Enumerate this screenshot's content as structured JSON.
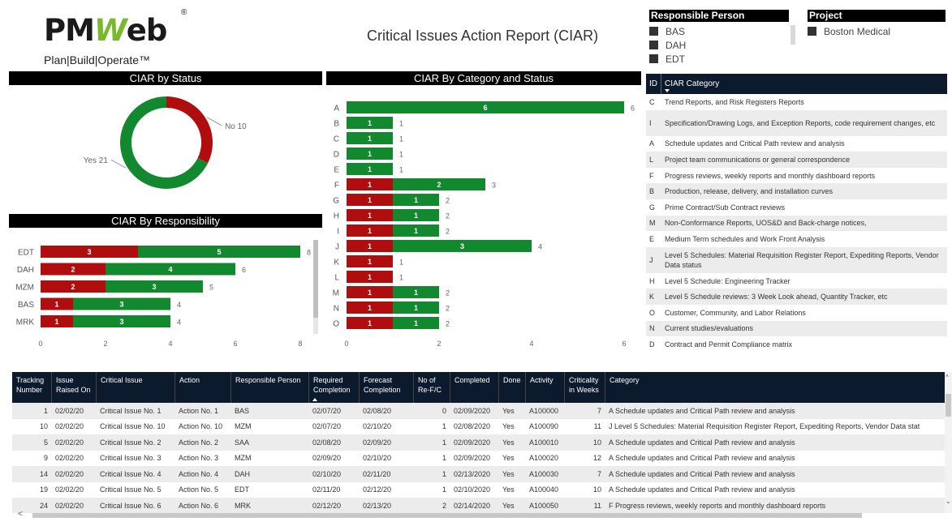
{
  "logo": {
    "main_pm": "PM",
    "main_w": "W",
    "main_eb": "eb",
    "registered": "®",
    "tagline": "Plan|Build|Operate™"
  },
  "report_title": "Critical Issues Action Report (CIAR)",
  "slicers": {
    "responsible": {
      "title": "Responsible Person",
      "items": [
        "BAS",
        "DAH",
        "EDT"
      ]
    },
    "project": {
      "title": "Project",
      "items": [
        "Boston Medical"
      ]
    }
  },
  "panels": {
    "status": "CIAR by Status",
    "category_status": "CIAR By Category and Status",
    "responsibility": "CIAR By Responsibility"
  },
  "colors": {
    "no": "#b00e0e",
    "yes": "#13892f",
    "header": "#0c1a2e"
  },
  "chart_data": [
    {
      "type": "pie",
      "title": "CIAR by Status",
      "slices": [
        {
          "label": "No",
          "value": 10,
          "text": "No 10",
          "color": "#b00e0e"
        },
        {
          "label": "Yes",
          "value": 21,
          "text": "Yes 21",
          "color": "#13892f"
        }
      ]
    },
    {
      "type": "bar",
      "orientation": "horizontal",
      "stacked": true,
      "title": "CIAR By Category and Status",
      "categories": [
        "A",
        "B",
        "C",
        "D",
        "E",
        "F",
        "G",
        "H",
        "I",
        "J",
        "K",
        "L",
        "M",
        "N",
        "O"
      ],
      "series": [
        {
          "color": "#b00e0e",
          "values": [
            0,
            0,
            0,
            0,
            0,
            1,
            1,
            1,
            1,
            1,
            1,
            1,
            1,
            1,
            1
          ]
        },
        {
          "color": "#13892f",
          "values": [
            6,
            1,
            1,
            1,
            1,
            2,
            1,
            1,
            1,
            3,
            0,
            0,
            1,
            1,
            1
          ]
        }
      ],
      "totals": [
        6,
        1,
        1,
        1,
        1,
        3,
        2,
        2,
        2,
        4,
        1,
        1,
        2,
        2,
        2
      ],
      "xticks": [
        0,
        2,
        4,
        6
      ],
      "xlim": [
        0,
        6
      ]
    },
    {
      "type": "bar",
      "orientation": "horizontal",
      "stacked": true,
      "title": "CIAR By Responsibility",
      "categories": [
        "EDT",
        "DAH",
        "MZM",
        "BAS",
        "MRK"
      ],
      "series": [
        {
          "color": "#b00e0e",
          "values": [
            3,
            2,
            2,
            1,
            1
          ]
        },
        {
          "color": "#13892f",
          "values": [
            5,
            4,
            3,
            3,
            3
          ]
        }
      ],
      "totals": [
        8,
        6,
        5,
        4,
        4
      ],
      "xticks": [
        0,
        2,
        4,
        6,
        8
      ],
      "xlim": [
        0,
        8
      ]
    }
  ],
  "category_table": {
    "headers": {
      "id": "ID",
      "category": "CIAR Category"
    },
    "rows": [
      {
        "id": "C",
        "text": "Trend Reports, and Risk Registers Reports"
      },
      {
        "id": "I",
        "text": "Specification/Drawing Logs, and Exception Reports, code requirement changes, etc"
      },
      {
        "id": "A",
        "text": "Schedule updates and Critical Path review and analysis"
      },
      {
        "id": "L",
        "text": "Project team communications or general correspondence"
      },
      {
        "id": "F",
        "text": "Progress reviews, weekly reports and monthly dashboard reports"
      },
      {
        "id": "B",
        "text": "Production, release, delivery, and installation curves"
      },
      {
        "id": "G",
        "text": "Prime Contract/Sub Contract reviews"
      },
      {
        "id": "M",
        "text": "Non-Conformance Reports, UOS&D and Back-charge notices,"
      },
      {
        "id": "E",
        "text": "Medium Term schedules and Work Front Analysis"
      },
      {
        "id": "J",
        "text": "Level 5 Schedules: Material Requisition Register Report, Expediting Reports, Vendor Data status"
      },
      {
        "id": "H",
        "text": "Level 5 Schedule: Engineering Tracker"
      },
      {
        "id": "K",
        "text": "Level 5 Schedule reviews: 3 Week Look ahead, Quantity Tracker, etc"
      },
      {
        "id": "O",
        "text": "Customer, Community, and Labor Relations"
      },
      {
        "id": "N",
        "text": "Current studies/evaluations"
      },
      {
        "id": "D",
        "text": "Contract and Permit Compliance matrix"
      }
    ]
  },
  "main_table": {
    "headers": [
      "Tracking Number",
      "Issue Raised On",
      "Critical Issue",
      "Action",
      "Responsible Person",
      "Required Completion",
      "Forecast Completion",
      "No of Re-F/C",
      "Completed",
      "Done",
      "Activity",
      "Criticality in Weeks",
      "Category"
    ],
    "rows": [
      [
        "1",
        "02/02/20",
        "Critical Issue No. 1",
        "Action No. 1",
        "BAS",
        "02/07/20",
        "02/08/20",
        "0",
        "02/09/2020",
        "Yes",
        "A100000",
        "7",
        "A Schedule updates and Critical Path review and analysis"
      ],
      [
        "10",
        "02/02/20",
        "Critical Issue No. 10",
        "Action No. 10",
        "MZM",
        "02/07/20",
        "02/10/20",
        "1",
        "02/08/2020",
        "Yes",
        "A100090",
        "11",
        "J Level 5 Schedules: Material Requisition Register Report, Expediting Reports, Vendor Data stat"
      ],
      [
        "5",
        "02/02/20",
        "Critical Issue No. 2",
        "Action No. 2",
        "SAA",
        "02/08/20",
        "02/09/20",
        "1",
        "02/09/2020",
        "Yes",
        "A100010",
        "10",
        "A Schedule updates and Critical Path review and analysis"
      ],
      [
        "9",
        "02/02/20",
        "Critical Issue No. 3",
        "Action No. 3",
        "MZM",
        "02/09/20",
        "02/10/20",
        "1",
        "02/09/2020",
        "Yes",
        "A100020",
        "12",
        "A Schedule updates and Critical Path review and analysis"
      ],
      [
        "14",
        "02/02/20",
        "Critical Issue No. 4",
        "Action No. 4",
        "DAH",
        "02/10/20",
        "02/11/20",
        "1",
        "02/13/2020",
        "Yes",
        "A100030",
        "7",
        "A Schedule updates and Critical Path review and analysis"
      ],
      [
        "19",
        "02/02/20",
        "Critical Issue No. 5",
        "Action No. 5",
        "EDT",
        "02/11/20",
        "02/12/20",
        "1",
        "02/10/2020",
        "Yes",
        "A100040",
        "10",
        "A Schedule updates and Critical Path review and analysis"
      ],
      [
        "24",
        "02/02/20",
        "Critical Issue No. 6",
        "Action No. 6",
        "MRK",
        "02/12/20",
        "02/13/20",
        "2",
        "02/14/2020",
        "Yes",
        "A100050",
        "11",
        "F Progress reviews, weekly reports and monthly dashboard reports"
      ]
    ]
  }
}
